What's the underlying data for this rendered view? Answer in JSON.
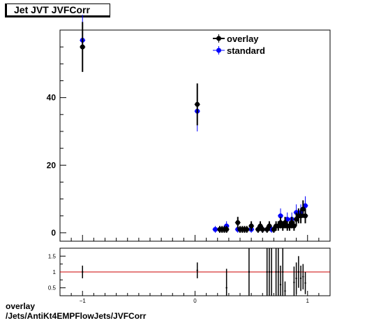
{
  "title": "Jet JVT JVFCorr",
  "footer": {
    "line1": "overlay",
    "line2": "/Jets/AntiKt4EMPFlowJets/JVFCorr"
  },
  "colors": {
    "overlay": "#000000",
    "standard": "#0000ff",
    "ratio_line": "#cc0000"
  },
  "chart_data": [
    {
      "type": "scatter",
      "title": "Jet JVT JVFCorr",
      "xlabel": "",
      "ylabel": "",
      "xlim": [
        -1.2,
        1.2
      ],
      "ylim": [
        -2.5,
        60
      ],
      "x_ticks": [],
      "y_ticks": [
        0,
        20,
        40
      ],
      "legend": "top-right",
      "grid": false,
      "series": [
        {
          "name": "overlay",
          "points": [
            {
              "x": -1.0,
              "y": 55,
              "err": 7.4
            },
            {
              "x": 0.02,
              "y": 38,
              "err": 6.2
            },
            {
              "x": 0.22,
              "y": 1,
              "err": 1
            },
            {
              "x": 0.24,
              "y": 1,
              "err": 1
            },
            {
              "x": 0.26,
              "y": 1,
              "err": 1
            },
            {
              "x": 0.28,
              "y": 1,
              "err": 1
            },
            {
              "x": 0.38,
              "y": 3,
              "err": 1.7
            },
            {
              "x": 0.4,
              "y": 1,
              "err": 1
            },
            {
              "x": 0.42,
              "y": 1,
              "err": 1
            },
            {
              "x": 0.44,
              "y": 1,
              "err": 1
            },
            {
              "x": 0.46,
              "y": 1,
              "err": 1
            },
            {
              "x": 0.5,
              "y": 2,
              "err": 1.4
            },
            {
              "x": 0.56,
              "y": 1,
              "err": 1
            },
            {
              "x": 0.58,
              "y": 2,
              "err": 1.4
            },
            {
              "x": 0.6,
              "y": 1,
              "err": 1
            },
            {
              "x": 0.64,
              "y": 1,
              "err": 1
            },
            {
              "x": 0.66,
              "y": 2,
              "err": 1.4
            },
            {
              "x": 0.7,
              "y": 1,
              "err": 1
            },
            {
              "x": 0.72,
              "y": 2,
              "err": 1.4
            },
            {
              "x": 0.74,
              "y": 2,
              "err": 1.4
            },
            {
              "x": 0.76,
              "y": 3,
              "err": 1.7
            },
            {
              "x": 0.78,
              "y": 2,
              "err": 1.4
            },
            {
              "x": 0.8,
              "y": 3,
              "err": 1.7
            },
            {
              "x": 0.82,
              "y": 2,
              "err": 1.4
            },
            {
              "x": 0.84,
              "y": 2,
              "err": 1.4
            },
            {
              "x": 0.86,
              "y": 3,
              "err": 1.7
            },
            {
              "x": 0.88,
              "y": 2,
              "err": 1.4
            },
            {
              "x": 0.9,
              "y": 4,
              "err": 2
            },
            {
              "x": 0.92,
              "y": 5,
              "err": 2.2
            },
            {
              "x": 0.94,
              "y": 5,
              "err": 2.2
            },
            {
              "x": 0.96,
              "y": 7,
              "err": 2.6
            },
            {
              "x": 0.98,
              "y": 5,
              "err": 2.2
            }
          ]
        },
        {
          "name": "standard",
          "points": [
            {
              "x": -1.0,
              "y": 57,
              "err": 7.5
            },
            {
              "x": 0.02,
              "y": 36,
              "err": 6
            },
            {
              "x": 0.18,
              "y": 1,
              "err": 1
            },
            {
              "x": 0.28,
              "y": 2,
              "err": 1.4
            },
            {
              "x": 0.38,
              "y": 1,
              "err": 1
            },
            {
              "x": 0.5,
              "y": 1,
              "err": 1
            },
            {
              "x": 0.6,
              "y": 1,
              "err": 1
            },
            {
              "x": 0.68,
              "y": 1,
              "err": 1
            },
            {
              "x": 0.76,
              "y": 5,
              "err": 2.2
            },
            {
              "x": 0.82,
              "y": 4,
              "err": 2
            },
            {
              "x": 0.86,
              "y": 4,
              "err": 2
            },
            {
              "x": 0.9,
              "y": 6,
              "err": 2.4
            },
            {
              "x": 0.94,
              "y": 6,
              "err": 2.4
            },
            {
              "x": 0.98,
              "y": 8,
              "err": 2.8
            }
          ]
        }
      ]
    },
    {
      "type": "scatter",
      "xlabel": "",
      "ylabel": "",
      "xlim": [
        -1.2,
        1.2
      ],
      "ylim": [
        0.25,
        1.75
      ],
      "x_ticks": [
        -1,
        0,
        1
      ],
      "y_ticks": [
        0.5,
        1,
        1.5
      ],
      "reference_line": 1,
      "series": [
        {
          "points": [
            {
              "x": -1.0,
              "y": 1.0,
              "err": 0.2
            },
            {
              "x": 0.02,
              "y": 1.05,
              "err": 0.25
            },
            {
              "x": 0.28,
              "y": 0.5,
              "err": 0.6
            },
            {
              "x": 0.48,
              "y": 1.0,
              "err": 1.0
            },
            {
              "x": 0.64,
              "y": 1.0,
              "err": 1.0
            },
            {
              "x": 0.66,
              "y": 1.0,
              "err": 1.0
            },
            {
              "x": 0.68,
              "y": 1.0,
              "err": 1.0
            },
            {
              "x": 0.72,
              "y": 1.0,
              "err": 1.0
            },
            {
              "x": 0.74,
              "y": 1.0,
              "err": 1.0
            },
            {
              "x": 0.76,
              "y": 0.6,
              "err": 0.6
            },
            {
              "x": 0.78,
              "y": 1.0,
              "err": 0.8
            },
            {
              "x": 0.8,
              "y": 0.4,
              "err": 0.3
            },
            {
              "x": 0.88,
              "y": 0.67,
              "err": 0.5
            },
            {
              "x": 0.9,
              "y": 0.8,
              "err": 0.5
            },
            {
              "x": 0.92,
              "y": 1.0,
              "err": 0.5
            },
            {
              "x": 0.94,
              "y": 0.8,
              "err": 0.4
            },
            {
              "x": 0.96,
              "y": 0.85,
              "err": 0.4
            },
            {
              "x": 0.98,
              "y": 0.65,
              "err": 0.35
            }
          ]
        }
      ]
    }
  ]
}
